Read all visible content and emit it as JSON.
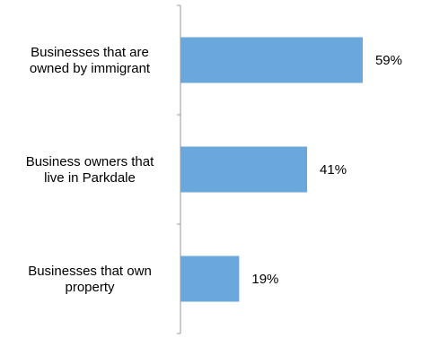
{
  "chart_data": {
    "type": "bar",
    "orientation": "horizontal",
    "categories": [
      [
        "Businesses that are",
        "owned by immigrant"
      ],
      [
        "Business owners that",
        "live in Parkdale"
      ],
      [
        "Businesses that own",
        "property"
      ]
    ],
    "values": [
      59,
      41,
      19
    ],
    "value_labels": [
      "59%",
      "41%",
      "19%"
    ],
    "xlim": [
      0,
      80
    ],
    "grid": false,
    "legend": "none",
    "bar_color": "#6aa7dc",
    "axis_color": "#999999"
  }
}
